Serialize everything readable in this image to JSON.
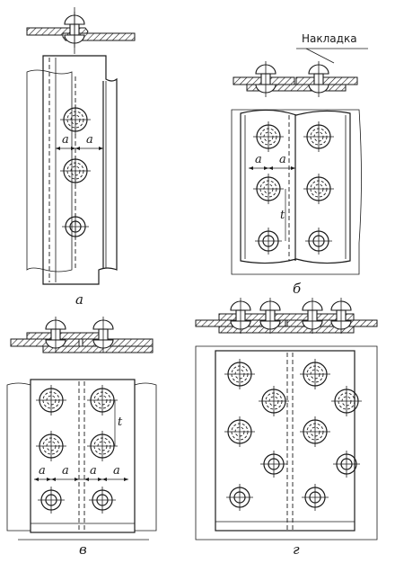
{
  "labels": {
    "a": "а",
    "b": "б",
    "v": "в",
    "g": "г"
  },
  "callout": "Накладка",
  "dims": {
    "a": "а",
    "t": "t"
  }
}
